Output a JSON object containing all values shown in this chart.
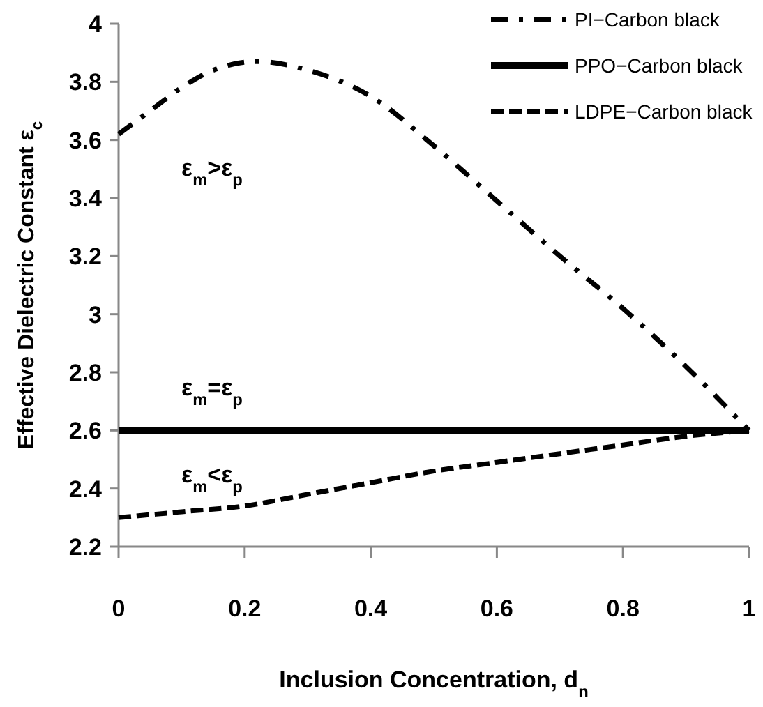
{
  "chart_data": {
    "type": "line",
    "xlabel": "Inclusion Concentration, d$_{n}$",
    "ylabel": "Effective Dielectric Constant ε$_{c}$",
    "xlim": [
      0,
      1
    ],
    "ylim": [
      2.2,
      4
    ],
    "xticks": [
      0,
      0.2,
      0.4,
      0.6,
      0.8,
      1
    ],
    "yticks": [
      2.2,
      2.4,
      2.6,
      2.8,
      3,
      3.2,
      3.4,
      3.6,
      3.8,
      4
    ],
    "grid": false,
    "legend": "top right",
    "marker": "none",
    "series": [
      {
        "name": "PI−Carbon black",
        "color": "#000000",
        "line_style": "dotted",
        "x": [
          0,
          0.05,
          0.1,
          0.15,
          0.22,
          0.3,
          0.4,
          0.5,
          0.6,
          0.7,
          0.8,
          0.9,
          1
        ],
        "values": [
          3.62,
          3.7,
          3.78,
          3.84,
          3.87,
          3.84,
          3.75,
          3.58,
          3.39,
          3.2,
          3.02,
          2.82,
          2.6
        ]
      },
      {
        "name": "PPO−Carbon black",
        "color": "#000000",
        "line_style": "solid",
        "x": [
          0,
          1
        ],
        "values": [
          2.6,
          2.6
        ]
      },
      {
        "name": "LDPE−Carbon black",
        "color": "#000000",
        "line_style": "dashed",
        "x": [
          0,
          0.1,
          0.2,
          0.3,
          0.4,
          0.5,
          0.6,
          0.7,
          0.8,
          0.9,
          1
        ],
        "values": [
          2.3,
          2.32,
          2.34,
          2.38,
          2.42,
          2.46,
          2.49,
          2.52,
          2.55,
          2.58,
          2.6
        ]
      }
    ],
    "annotations": [
      "ε$_{m}$>ε$_{p}$",
      "ε$_{m}$=ε$_{p}$",
      "ε$_{m}$<ε$_{p}$"
    ]
  }
}
